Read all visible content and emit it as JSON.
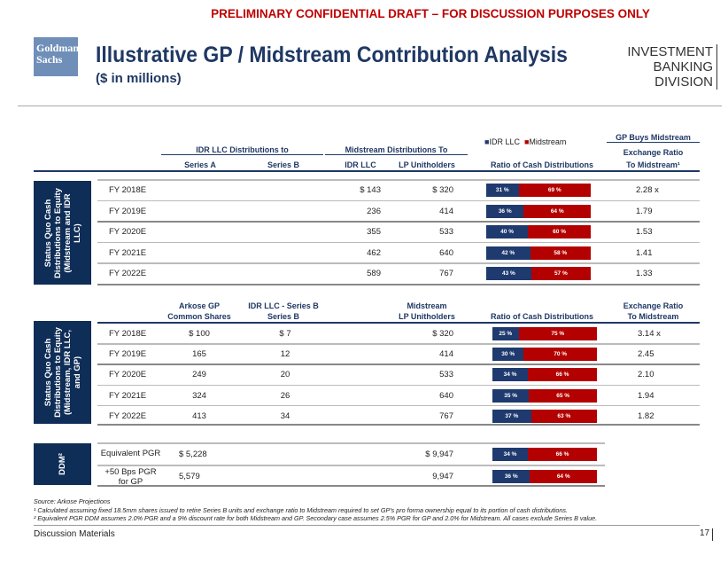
{
  "banner": "PRELIMINARY CONFIDENTIAL DRAFT – FOR DISCUSSION PURPOSES ONLY",
  "logo": "Goldman Sachs",
  "title": "Illustrative GP / Midstream Contribution Analysis",
  "subtitle": "($ in millions)",
  "division": [
    "INVESTMENT BANKING",
    "DIVISION"
  ],
  "colors": {
    "idr": "#1f3a6e",
    "midstream": "#b30000",
    "navy": "#0e2d57"
  },
  "legend": {
    "idr": "IDR LLC",
    "midstream": "Midstream"
  },
  "t1": {
    "side_label": "Status Quo Cash\nDistributions to Equity\n(Midstream and IDR\nLLC)",
    "group1": "IDR LLC Distributions to",
    "group2": "Midstream Distributions To",
    "group3": "GP Buys Midstream",
    "cols": [
      "Series A",
      "Series B",
      "IDR LLC",
      "LP Unitholders",
      "Ratio of Cash Distributions",
      "Exchange Ratio",
      "To Midstream¹"
    ],
    "rows": [
      {
        "year": "FY 2018E",
        "idr": "$ 143",
        "lp": "$ 320",
        "a": 31,
        "b": 69,
        "ratio": "2.28 x"
      },
      {
        "year": "FY 2019E",
        "idr": "236",
        "lp": "414",
        "a": 36,
        "b": 64,
        "ratio": "1.79"
      },
      {
        "year": "FY 2020E",
        "idr": "355",
        "lp": "533",
        "a": 40,
        "b": 60,
        "ratio": "1.53"
      },
      {
        "year": "FY 2021E",
        "idr": "462",
        "lp": "640",
        "a": 42,
        "b": 58,
        "ratio": "1.41"
      },
      {
        "year": "FY 2022E",
        "idr": "589",
        "lp": "767",
        "a": 43,
        "b": 57,
        "ratio": "1.33"
      }
    ]
  },
  "t2": {
    "side_label": "Status Quo Cash\nDistributions to Equity\n(Midstream, IDR LLC,\nand GP)",
    "cols": [
      "Arkose GP",
      "Common Shares",
      "IDR LLC - Series B",
      "Series B",
      "Midstream",
      "LP Unitholders",
      "Ratio of Cash Distributions",
      "Exchange Ratio",
      "To Midstream"
    ],
    "rows": [
      {
        "year": "FY 2018E",
        "gp": "$ 100",
        "sb": "$ 7",
        "lp": "$ 320",
        "a": 25,
        "b": 75,
        "ratio": "3.14 x"
      },
      {
        "year": "FY 2019E",
        "gp": "165",
        "sb": "12",
        "lp": "414",
        "a": 30,
        "b": 70,
        "ratio": "2.45"
      },
      {
        "year": "FY 2020E",
        "gp": "249",
        "sb": "20",
        "lp": "533",
        "a": 34,
        "b": 66,
        "ratio": "2.10"
      },
      {
        "year": "FY 2021E",
        "gp": "324",
        "sb": "26",
        "lp": "640",
        "a": 35,
        "b": 65,
        "ratio": "1.94"
      },
      {
        "year": "FY 2022E",
        "gp": "413",
        "sb": "34",
        "lp": "767",
        "a": 37,
        "b": 63,
        "ratio": "1.82"
      }
    ]
  },
  "t3": {
    "side_label": "DDM²",
    "rows": [
      {
        "year": "Equivalent PGR",
        "gp": "$ 5,228",
        "lp": "$ 9,947",
        "a": 34,
        "b": 66
      },
      {
        "year": "+50 Bps PGR\nfor GP",
        "gp": "5,579",
        "lp": "9,947",
        "a": 36,
        "b": 64
      }
    ]
  },
  "footnotes": [
    "Source: Arkose Projections",
    "¹ Calculated assuming fixed 18.5mm shares issued to retire Series B units and exchange ratio to Midstream required to set GP's pro forma ownership equal to its portion of cash distributions.",
    "² Equivalent PGR DDM assumes 2.0% PGR and a 9% discount rate for both Midstream and GP.  Secondary case assumes 2.5% PGR for GP and 2.0% for  Midstream. All cases exclude Series B value."
  ],
  "footer": {
    "left": "Discussion Materials",
    "page": "17"
  }
}
